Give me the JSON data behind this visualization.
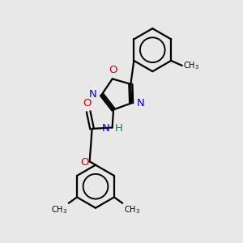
{
  "bg_color": "#e8e8e8",
  "bond_color": "#000000",
  "nitrogen_color": "#0000cc",
  "oxygen_color": "#cc0000",
  "nh_color": "#008080",
  "line_width": 1.6,
  "font_size": 9.5,
  "fig_size": [
    3.0,
    3.0
  ],
  "dpi": 100,
  "xlim": [
    0,
    10
  ],
  "ylim": [
    0,
    10
  ]
}
